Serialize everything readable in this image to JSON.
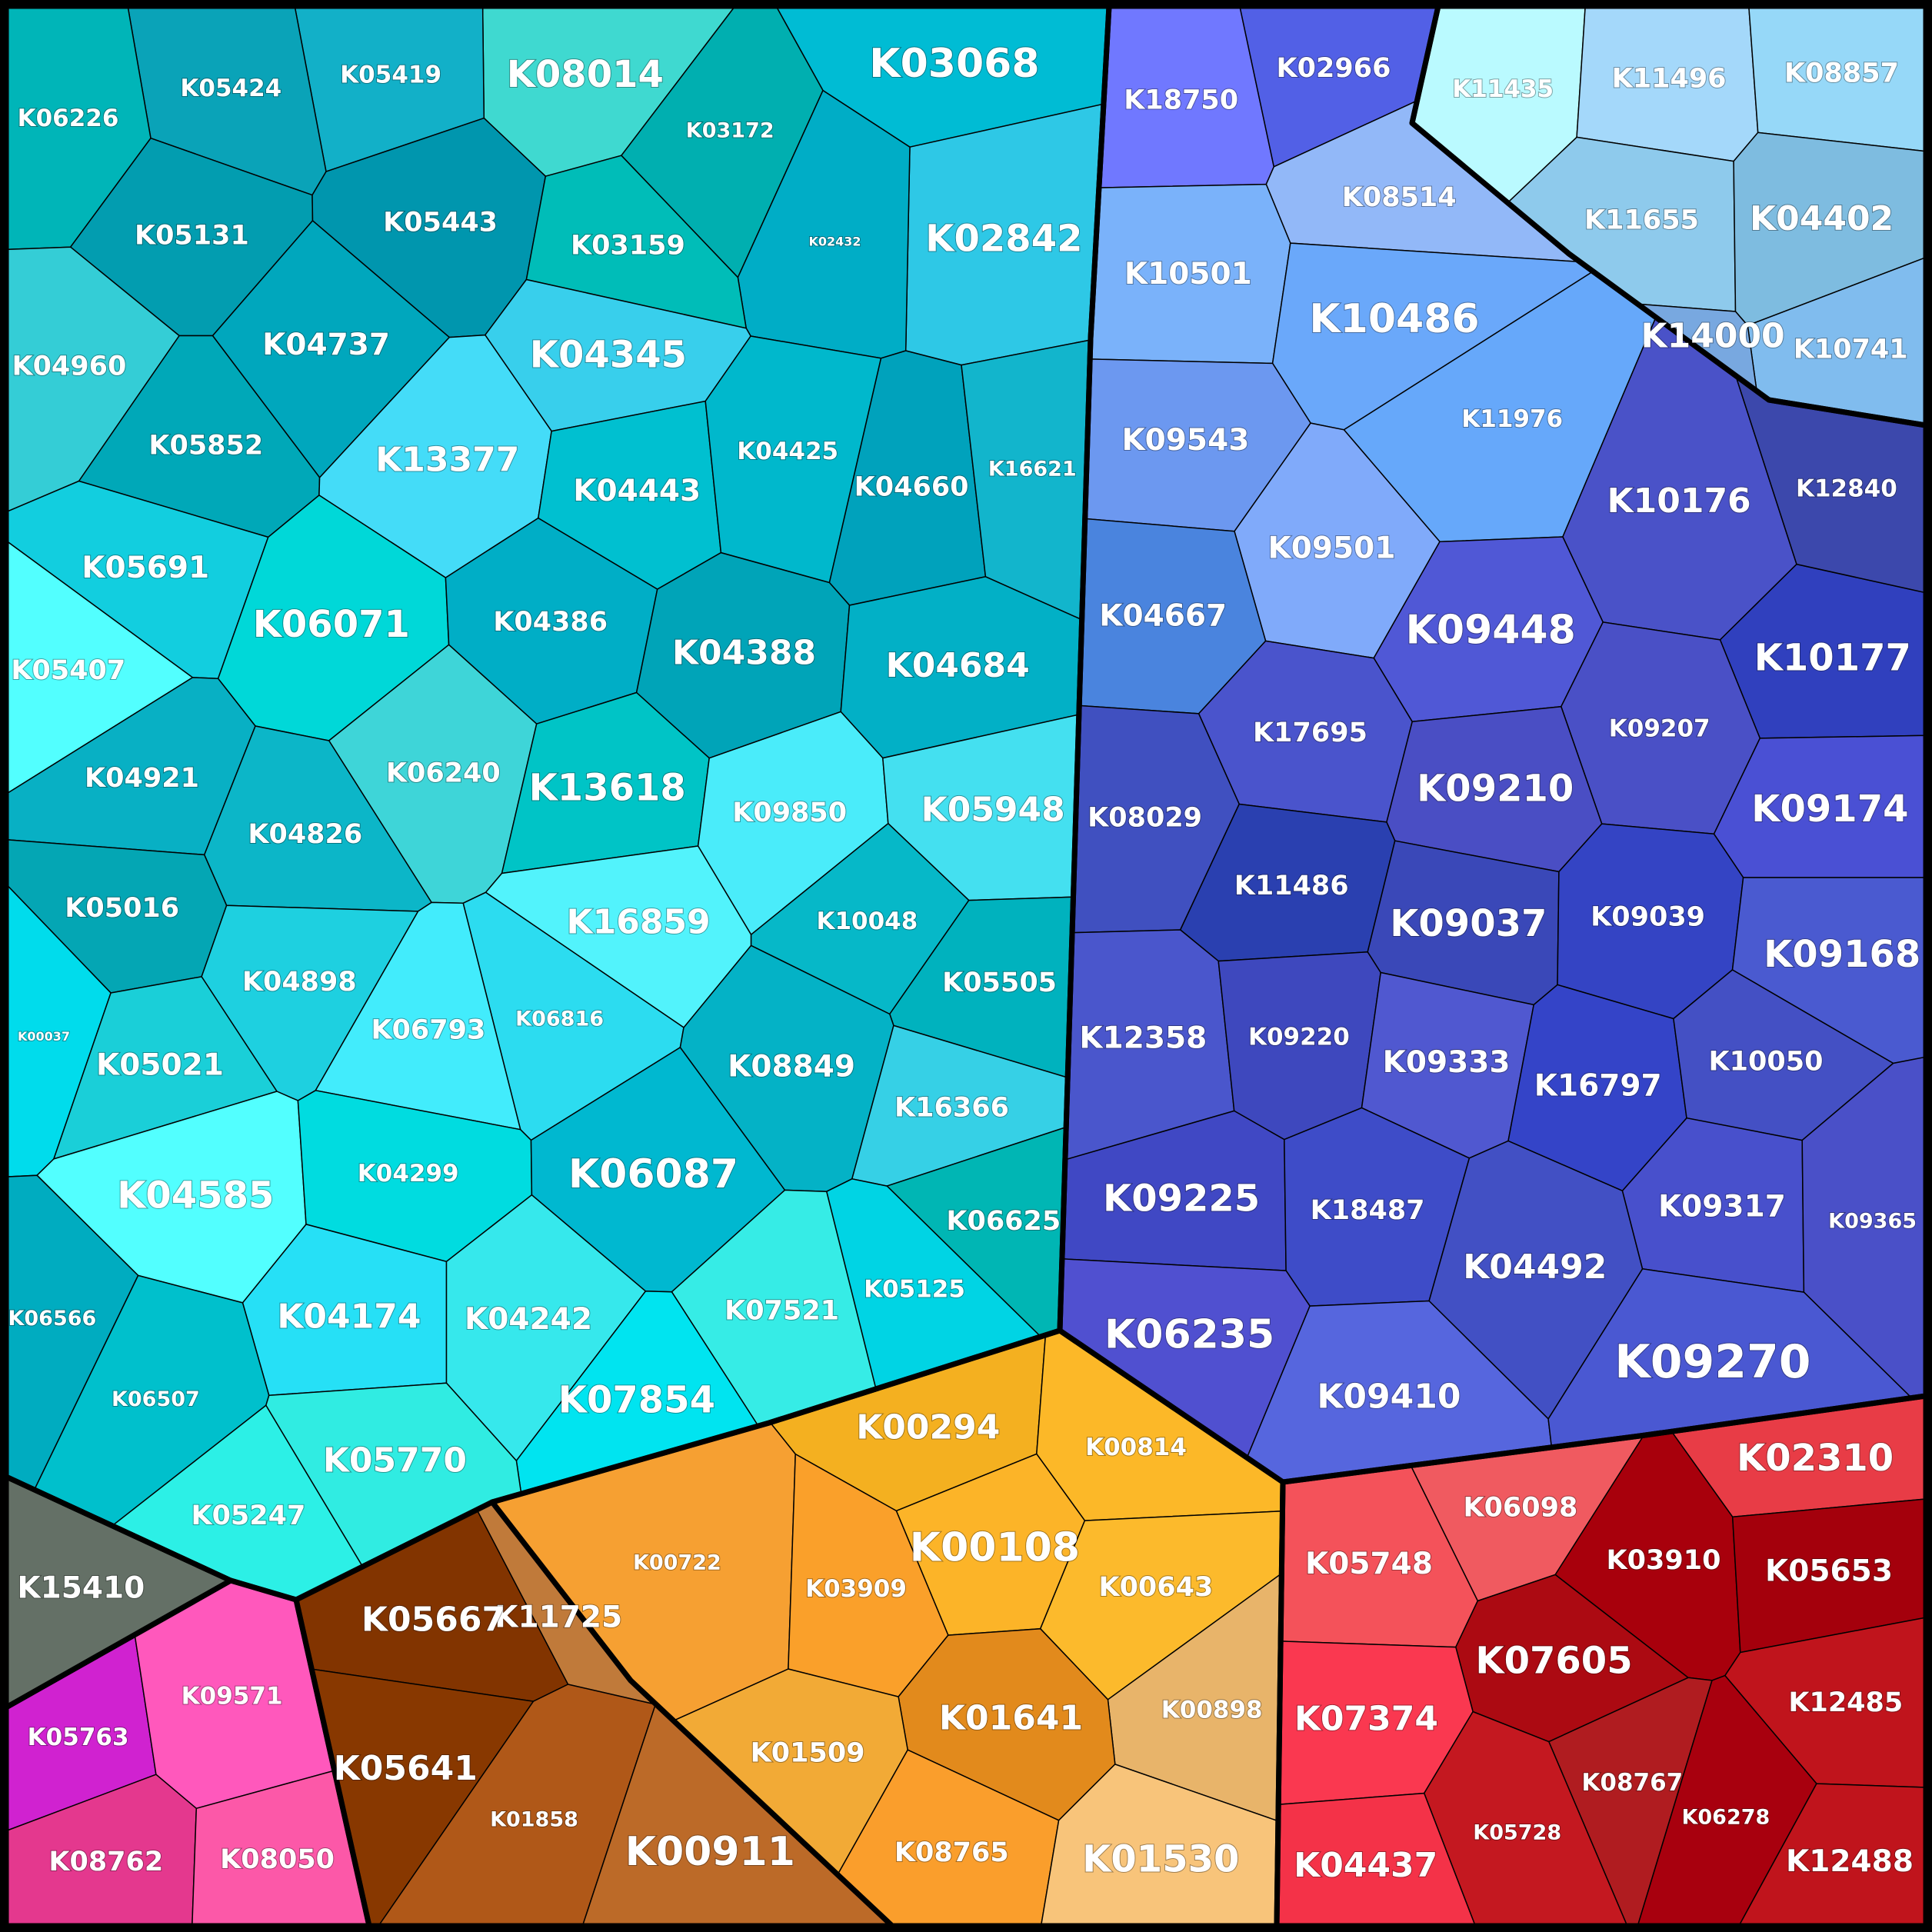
{
  "chart_data": {
    "type": "voronoi-treemap",
    "groups": [
      {
        "name": "cyan",
        "color": "#1ec8dc",
        "items": [
          {
            "label": "K03068",
            "value": 10,
            "color": "#00bcd4"
          },
          {
            "label": "K08014",
            "value": 9,
            "color": "#3fd9d0"
          },
          {
            "label": "K02842",
            "value": 9,
            "color": "#2ec8e6"
          },
          {
            "label": "K05419",
            "value": 5,
            "color": "#12b0c8"
          },
          {
            "label": "K05424",
            "value": 5,
            "color": "#0aa3b8"
          },
          {
            "label": "K06226",
            "value": 5,
            "color": "#00b5b8"
          },
          {
            "label": "K03172",
            "value": 4,
            "color": "#00afb0"
          },
          {
            "label": "K02432",
            "value": 1,
            "color": "#00adc6"
          },
          {
            "label": "K05131",
            "value": 6,
            "color": "#029db0"
          },
          {
            "label": "K05443",
            "value": 6,
            "color": "#0096ae"
          },
          {
            "label": "K03159",
            "value": 6,
            "color": "#00bdb8"
          },
          {
            "label": "K04960",
            "value": 6,
            "color": "#34cdd6"
          },
          {
            "label": "K04737",
            "value": 7,
            "color": "#00a7bd"
          },
          {
            "label": "K04345",
            "value": 9,
            "color": "#38cfec"
          },
          {
            "label": "K05852",
            "value": 6,
            "color": "#00a8b8"
          },
          {
            "label": "K13377",
            "value": 8,
            "color": "#44dcf8"
          },
          {
            "label": "K04443",
            "value": 7,
            "color": "#00c0d0"
          },
          {
            "label": "K04425",
            "value": 5,
            "color": "#00b8cc"
          },
          {
            "label": "K04660",
            "value": 6,
            "color": "#00a2bc"
          },
          {
            "label": "K16621",
            "value": 4,
            "color": "#12b5cc"
          },
          {
            "label": "K05691",
            "value": 7,
            "color": "#12cedf"
          },
          {
            "label": "K06071",
            "value": 9,
            "color": "#00d8d8"
          },
          {
            "label": "K04386",
            "value": 6,
            "color": "#00aec6"
          },
          {
            "label": "K04388",
            "value": 8,
            "color": "#00a4b8"
          },
          {
            "label": "K04684",
            "value": 8,
            "color": "#02b0c6"
          },
          {
            "label": "K05407",
            "value": 6,
            "color": "#52ffff"
          },
          {
            "label": "K06240",
            "value": 6,
            "color": "#3ed5d8"
          },
          {
            "label": "K13618",
            "value": 9,
            "color": "#00c4c6"
          },
          {
            "label": "K09850",
            "value": 6,
            "color": "#4aecfa"
          },
          {
            "label": "K05948",
            "value": 8,
            "color": "#44e0f0"
          },
          {
            "label": "K04921",
            "value": 6,
            "color": "#08b0c4"
          },
          {
            "label": "K04826",
            "value": 6,
            "color": "#0cb6c8"
          },
          {
            "label": "K16859",
            "value": 8,
            "color": "#52f3fc"
          },
          {
            "label": "K10048",
            "value": 5,
            "color": "#06b8c8"
          },
          {
            "label": "K05016",
            "value": 6,
            "color": "#04a6b4"
          },
          {
            "label": "K04898",
            "value": 6,
            "color": "#1ed0e0"
          },
          {
            "label": "K00037",
            "value": 1,
            "color": "#00dcec"
          },
          {
            "label": "K06816",
            "value": 4,
            "color": "#2cdcf0"
          },
          {
            "label": "K06793",
            "value": 6,
            "color": "#42ecfc"
          },
          {
            "label": "K05505",
            "value": 6,
            "color": "#00b2be"
          },
          {
            "label": "K05021",
            "value": 7,
            "color": "#1acfd8"
          },
          {
            "label": "K08849",
            "value": 7,
            "color": "#04b2c6"
          },
          {
            "label": "K16366",
            "value": 6,
            "color": "#36d0e6"
          },
          {
            "label": "K04585",
            "value": 9,
            "color": "#52ffff"
          },
          {
            "label": "K04299",
            "value": 5,
            "color": "#00dce0"
          },
          {
            "label": "K06087",
            "value": 10,
            "color": "#00b8d0"
          },
          {
            "label": "K06625",
            "value": 6,
            "color": "#00b6b4"
          },
          {
            "label": "K06566",
            "value": 4,
            "color": "#00acc0"
          },
          {
            "label": "K04174",
            "value": 8,
            "color": "#26e0f6"
          },
          {
            "label": "K04242",
            "value": 7,
            "color": "#36e8ec"
          },
          {
            "label": "K07521",
            "value": 6,
            "color": "#36ece6"
          },
          {
            "label": "K05125",
            "value": 5,
            "color": "#00d4e4"
          },
          {
            "label": "K06507",
            "value": 4,
            "color": "#00c0cc"
          },
          {
            "label": "K07854",
            "value": 9,
            "color": "#00e4f0"
          },
          {
            "label": "K05770",
            "value": 8,
            "color": "#30ece2"
          },
          {
            "label": "K05247",
            "value": 6,
            "color": "#2cf0e6"
          }
        ]
      },
      {
        "name": "blue",
        "color": "#5a5ee0",
        "items": [
          {
            "label": "K18750",
            "value": 6,
            "color": "#7078ff"
          },
          {
            "label": "K02966",
            "value": 6,
            "color": "#5260e6"
          },
          {
            "label": "K08514",
            "value": 6,
            "color": "#92b8f8"
          },
          {
            "label": "K10501",
            "value": 7,
            "color": "#7ab2fa"
          },
          {
            "label": "K10486",
            "value": 10,
            "color": "#6aa8fa"
          },
          {
            "label": "K11976",
            "value": 5,
            "color": "#66a8fa"
          },
          {
            "label": "K09543",
            "value": 7,
            "color": "#6c98f0"
          },
          {
            "label": "K09501",
            "value": 7,
            "color": "#80aafa"
          },
          {
            "label": "K04667",
            "value": 7,
            "color": "#4a84de"
          },
          {
            "label": "K10176",
            "value": 8,
            "color": "#4a52c8"
          },
          {
            "label": "K09448",
            "value": 10,
            "color": "#5058d6"
          },
          {
            "label": "K10177",
            "value": 9,
            "color": "#3040be"
          },
          {
            "label": "K17695",
            "value": 6,
            "color": "#4a54cc"
          },
          {
            "label": "K09207",
            "value": 5,
            "color": "#4a50c6"
          },
          {
            "label": "K08029",
            "value": 6,
            "color": "#4050c0"
          },
          {
            "label": "K09210",
            "value": 9,
            "color": "#4a4ec4"
          },
          {
            "label": "K09174",
            "value": 9,
            "color": "#4a50d4"
          },
          {
            "label": "K11486",
            "value": 6,
            "color": "#2a40b0"
          },
          {
            "label": "K09037",
            "value": 9,
            "color": "#3a48b8"
          },
          {
            "label": "K09039",
            "value": 6,
            "color": "#3444c4"
          },
          {
            "label": "K09168",
            "value": 9,
            "color": "#4a5ad0"
          },
          {
            "label": "K12358",
            "value": 7,
            "color": "#4a56cc"
          },
          {
            "label": "K09220",
            "value": 5,
            "color": "#3e48be"
          },
          {
            "label": "K09333",
            "value": 7,
            "color": "#5058d0"
          },
          {
            "label": "K16797",
            "value": 7,
            "color": "#3444c8"
          },
          {
            "label": "K10050",
            "value": 6,
            "color": "#4450c4"
          },
          {
            "label": "K09225",
            "value": 9,
            "color": "#4048c4"
          },
          {
            "label": "K18487",
            "value": 6,
            "color": "#3e4cc8"
          },
          {
            "label": "K04492",
            "value": 8,
            "color": "#4250c4"
          },
          {
            "label": "K09317",
            "value": 7,
            "color": "#4850cc"
          },
          {
            "label": "K09365",
            "value": 4,
            "color": "#4a50c8"
          },
          {
            "label": "K06235",
            "value": 10,
            "color": "#5050d0"
          },
          {
            "label": "K09410",
            "value": 8,
            "color": "#5666de"
          },
          {
            "label": "K09270",
            "value": 12,
            "color": "#4a58d2"
          },
          {
            "label": "K12840",
            "value": 5,
            "color": "#3c48ac"
          }
        ]
      },
      {
        "name": "light-blue",
        "color": "#9ad8f4",
        "items": [
          {
            "label": "K11435",
            "value": 5,
            "color": "#bafaff"
          },
          {
            "label": "K11496",
            "value": 6,
            "color": "#a4d8fa"
          },
          {
            "label": "K08857",
            "value": 6,
            "color": "#96d8f8"
          },
          {
            "label": "K11655",
            "value": 6,
            "color": "#8ecaec"
          },
          {
            "label": "K04402",
            "value": 8,
            "color": "#7ebce0"
          },
          {
            "label": "K10741",
            "value": 6,
            "color": "#80bcee"
          },
          {
            "label": "K14000",
            "value": 8,
            "color": "#78a8e0"
          }
        ]
      },
      {
        "name": "orange",
        "color": "#f5a623",
        "items": [
          {
            "label": "K00294",
            "value": 8,
            "color": "#f4b020"
          },
          {
            "label": "K00814",
            "value": 5,
            "color": "#fcb828"
          },
          {
            "label": "K00108",
            "value": 10,
            "color": "#fcb428"
          },
          {
            "label": "K00643",
            "value": 6,
            "color": "#fcba2c"
          },
          {
            "label": "K00722",
            "value": 4,
            "color": "#f6a032"
          },
          {
            "label": "K03909",
            "value": 5,
            "color": "#faa02a"
          },
          {
            "label": "K00898",
            "value": 5,
            "color": "#e8b46a"
          },
          {
            "label": "K01641",
            "value": 8,
            "color": "#e28a1c"
          },
          {
            "label": "K01509",
            "value": 6,
            "color": "#f2aa36"
          },
          {
            "label": "K08765",
            "value": 6,
            "color": "#fa9e2c"
          },
          {
            "label": "K01530",
            "value": 9,
            "color": "#f8c47a"
          }
        ]
      },
      {
        "name": "brown",
        "color": "#a0501a",
        "items": [
          {
            "label": "K11725",
            "value": 7,
            "color": "#c07a3a"
          },
          {
            "label": "K05667",
            "value": 8,
            "color": "#823400"
          },
          {
            "label": "K05641",
            "value": 8,
            "color": "#883800"
          },
          {
            "label": "K01858",
            "value": 4,
            "color": "#b05818"
          },
          {
            "label": "K00911",
            "value": 10,
            "color": "#bc6a28"
          }
        ]
      },
      {
        "name": "grey",
        "color": "#667066",
        "items": [
          {
            "label": "K15410",
            "value": 7,
            "color": "#647066"
          }
        ]
      },
      {
        "name": "magenta",
        "color": "#e040c0",
        "items": [
          {
            "label": "K05763",
            "value": 5,
            "color": "#d022d0"
          },
          {
            "label": "K09571",
            "value": 5,
            "color": "#ff58bc"
          },
          {
            "label": "K08762",
            "value": 6,
            "color": "#e4388e"
          },
          {
            "label": "K08050",
            "value": 6,
            "color": "#fc58a8"
          }
        ]
      },
      {
        "name": "red",
        "color": "#d8202c",
        "items": [
          {
            "label": "K06098",
            "value": 6,
            "color": "#f05a60"
          },
          {
            "label": "K02310",
            "value": 9,
            "color": "#e83c46"
          },
          {
            "label": "K05748",
            "value": 7,
            "color": "#f4525a"
          },
          {
            "label": "K03910",
            "value": 6,
            "color": "#a8000c"
          },
          {
            "label": "K05653",
            "value": 7,
            "color": "#a4000c"
          },
          {
            "label": "K07605",
            "value": 9,
            "color": "#ac0a12"
          },
          {
            "label": "K07374",
            "value": 8,
            "color": "#fa3850"
          },
          {
            "label": "K12485",
            "value": 6,
            "color": "#c0141c"
          },
          {
            "label": "K08767",
            "value": 5,
            "color": "#b01c20"
          },
          {
            "label": "K05728",
            "value": 4,
            "color": "#c41820"
          },
          {
            "label": "K06278",
            "value": 4,
            "color": "#a8000e"
          },
          {
            "label": "K04437",
            "value": 8,
            "color": "#f43248"
          },
          {
            "label": "K12488",
            "value": 7,
            "color": "#c0141c"
          }
        ]
      }
    ]
  }
}
